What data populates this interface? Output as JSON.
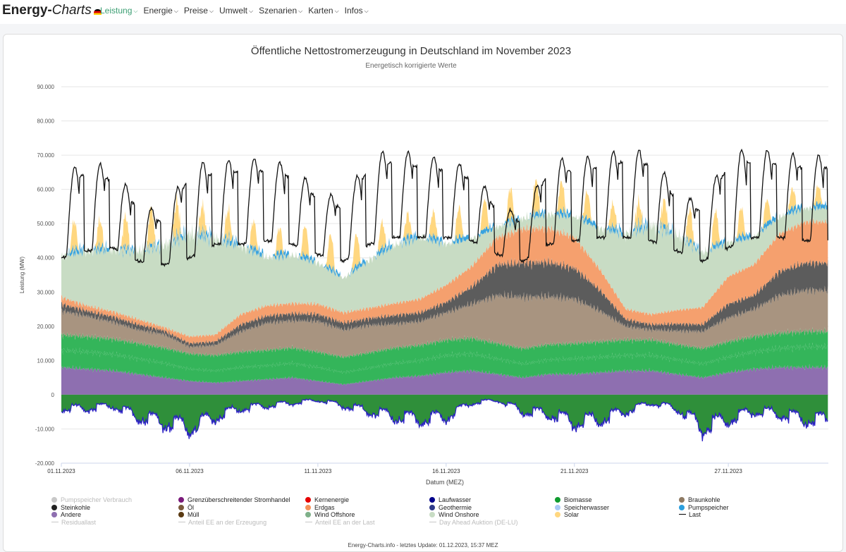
{
  "nav": {
    "brand_main": "Energy-",
    "brand_sub": "Charts",
    "items": [
      {
        "label": "Leistung",
        "active": true
      },
      {
        "label": "Energie"
      },
      {
        "label": "Preise"
      },
      {
        "label": "Umwelt"
      },
      {
        "label": "Szenarien"
      },
      {
        "label": "Karten"
      },
      {
        "label": "Infos"
      }
    ]
  },
  "footer": "Energy-Charts.info - letztes Update: 01.12.2023, 15:37 MEZ",
  "chart_data": {
    "type": "area",
    "title": "Öffentliche Nettostromerzeugung in Deutschland im November 2023",
    "subtitle": "Energetisch korrigierte Werte",
    "ylabel": "Leistung (MW)",
    "xlabel": "Datum (MEZ)",
    "ylim": [
      -20000,
      90000
    ],
    "xlim_days": [
      1,
      30.9
    ],
    "y_ticks": [
      -20000,
      -10000,
      0,
      10000,
      20000,
      30000,
      40000,
      50000,
      60000,
      70000,
      80000,
      90000
    ],
    "y_tick_labels": [
      "-20.000",
      "-10.000",
      "0",
      "10.000",
      "20.000",
      "30.000",
      "40.000",
      "50.000",
      "60.000",
      "70.000",
      "80.000",
      "90.000"
    ],
    "x_ticks": [
      1,
      6,
      11,
      16,
      21,
      27
    ],
    "x_tick_labels": [
      "01.11.2023",
      "06.11.2023",
      "11.11.2023",
      "16.11.2023",
      "21.11.2023",
      "27.11.2023"
    ],
    "daily": {
      "days": [
        "01.11.",
        "02.11.",
        "03.11.",
        "04.11.",
        "05.11.",
        "06.11.",
        "07.11.",
        "08.11.",
        "09.11.",
        "10.11.",
        "11.11.",
        "12.11.",
        "13.11.",
        "14.11.",
        "15.11.",
        "16.11.",
        "17.11.",
        "18.11.",
        "19.11.",
        "20.11.",
        "21.11.",
        "22.11.",
        "23.11.",
        "24.11.",
        "25.11.",
        "26.11.",
        "27.11.",
        "28.11.",
        "29.11.",
        "30.11."
      ],
      "load_peak": [
        64000,
        69000,
        66000,
        57000,
        52000,
        68000,
        68000,
        69000,
        69000,
        67000,
        60000,
        57000,
        70000,
        72000,
        70000,
        69000,
        66000,
        56000,
        52000,
        69000,
        69000,
        70000,
        72000,
        71000,
        59000,
        56000,
        71000,
        72000,
        71000,
        70000
      ],
      "load_min": [
        40000,
        42000,
        43000,
        39000,
        38000,
        40000,
        44000,
        44000,
        45000,
        44000,
        41000,
        39000,
        44000,
        46000,
        46000,
        46000,
        45000,
        41000,
        39000,
        44000,
        45000,
        46000,
        46000,
        45000,
        42000,
        39000,
        43000,
        46000,
        46000,
        45000
      ],
      "andere": [
        8000,
        7500,
        7000,
        6000,
        5000,
        4000,
        3500,
        4000,
        4500,
        5000,
        4000,
        3000,
        4000,
        5000,
        5500,
        6500,
        7000,
        6000,
        5000,
        6000,
        6000,
        6500,
        7000,
        7000,
        6000,
        5000,
        6500,
        7500,
        8000,
        8000
      ],
      "wind_offshore": [
        5000,
        5000,
        4800,
        4500,
        4200,
        3500,
        3500,
        4000,
        4000,
        4200,
        4000,
        3500,
        3800,
        4200,
        4500,
        5000,
        5000,
        4500,
        4000,
        4200,
        4500,
        4500,
        4500,
        4500,
        4200,
        4000,
        4500,
        5000,
        5500,
        6000
      ],
      "biomasse": [
        4500,
        4500,
        4500,
        4500,
        4500,
        4500,
        4500,
        4500,
        4500,
        4500,
        4500,
        4500,
        4500,
        4500,
        4500,
        4500,
        4500,
        4500,
        4500,
        4500,
        4500,
        4500,
        4500,
        4500,
        4500,
        4500,
        4500,
        4500,
        4500,
        4500
      ],
      "braunkohle": [
        7000,
        6000,
        5000,
        4000,
        4000,
        2000,
        3000,
        6000,
        8000,
        8000,
        9000,
        8000,
        8000,
        7000,
        7000,
        8000,
        10000,
        14000,
        15000,
        14000,
        13000,
        9000,
        4000,
        3000,
        4000,
        5000,
        7000,
        8000,
        11000,
        12000
      ],
      "steinkohle": [
        2000,
        1500,
        1500,
        1500,
        1000,
        1000,
        1000,
        2000,
        2000,
        2000,
        2000,
        2000,
        2000,
        2500,
        2500,
        3000,
        5000,
        9000,
        10000,
        10000,
        9000,
        6000,
        2000,
        1500,
        2000,
        2000,
        4000,
        4000,
        7000,
        8000
      ],
      "erdgas": [
        2000,
        1500,
        1500,
        1500,
        1000,
        2000,
        2000,
        3000,
        3000,
        3000,
        3000,
        3000,
        3000,
        3500,
        4000,
        5000,
        6000,
        8000,
        10000,
        10000,
        9000,
        6000,
        3000,
        3000,
        4000,
        5000,
        8000,
        9000,
        11000,
        12000
      ],
      "wind_onshore": [
        12000,
        16000,
        18000,
        20000,
        24000,
        30000,
        28000,
        20000,
        14000,
        14000,
        12000,
        10000,
        14000,
        17000,
        18000,
        12000,
        8000,
        3000,
        3000,
        4000,
        6000,
        12000,
        22000,
        26000,
        22000,
        16000,
        10000,
        8000,
        5000,
        4000
      ],
      "solar_peak": [
        9000,
        7000,
        8000,
        10000,
        12000,
        8000,
        7000,
        9000,
        6000,
        8000,
        9000,
        10000,
        8000,
        7000,
        6000,
        8000,
        9000,
        8000,
        10000,
        9000,
        8000,
        7000,
        6000,
        7000,
        8000,
        10000,
        9000,
        7000,
        6000,
        5000
      ],
      "pump_import": [
        1500,
        1500,
        1200,
        1000,
        1000,
        1500,
        1500,
        1500,
        1500,
        1500,
        1200,
        1000,
        1500,
        1500,
        1500,
        1500,
        1500,
        1200,
        1000,
        1500,
        1500,
        1500,
        1500,
        1500,
        1200,
        1000,
        1500,
        1500,
        1500,
        1500
      ],
      "grenz_min": [
        -5000,
        -5000,
        -4000,
        -8000,
        -10000,
        -12000,
        -8000,
        -5000,
        -4000,
        -3000,
        -2000,
        -4000,
        -6000,
        -8000,
        -9000,
        -8000,
        -3000,
        -2000,
        -6000,
        -7000,
        -10000,
        -9000,
        -6000,
        -3000,
        -5000,
        -12000,
        -9000,
        -6000,
        -7000,
        -9000
      ]
    },
    "legend": [
      {
        "label": "Pumpspeicher Verbrauch",
        "color": "#c8c8c8",
        "marker": "dot",
        "hidden": true
      },
      {
        "label": "Grenzüberschreitender Stromhandel",
        "color": "#7a1a7a",
        "marker": "dot"
      },
      {
        "label": "Kernenergie",
        "color": "#e60000",
        "marker": "dot"
      },
      {
        "label": "Laufwasser",
        "color": "#00008b",
        "marker": "dot"
      },
      {
        "label": "Biomasse",
        "color": "#0f9b2f",
        "marker": "dot"
      },
      {
        "label": "Braunkohle",
        "color": "#8e7a63",
        "marker": "dot"
      },
      {
        "label": "Steinkohle",
        "color": "#222222",
        "marker": "dot"
      },
      {
        "label": "Öl",
        "color": "#7b5a3c",
        "marker": "dot"
      },
      {
        "label": "Erdgas",
        "color": "#f5915a",
        "marker": "dot"
      },
      {
        "label": "Geothermie",
        "color": "#2e3a8a",
        "marker": "dot"
      },
      {
        "label": "Speicherwasser",
        "color": "#a9c9f5",
        "marker": "dot"
      },
      {
        "label": "Pumpspeicher",
        "color": "#2b9fde",
        "marker": "dot"
      },
      {
        "label": "Andere",
        "color": "#8e6fb0",
        "marker": "dot"
      },
      {
        "label": "Müll",
        "color": "#5a3a12",
        "marker": "dot"
      },
      {
        "label": "Wind Offshore",
        "color": "#7fb089",
        "marker": "dot"
      },
      {
        "label": "Wind Onshore",
        "color": "#c8dcc4",
        "marker": "dot"
      },
      {
        "label": "Solar",
        "color": "#ffd780",
        "marker": "dot"
      },
      {
        "label": "Last",
        "color": "#000000",
        "marker": "line"
      },
      {
        "label": "Residuallast",
        "color": "#c8c8c8",
        "marker": "line",
        "hidden": true
      },
      {
        "label": "Anteil EE an der Erzeugung",
        "color": "#c8c8c8",
        "marker": "line",
        "hidden": true
      },
      {
        "label": "Anteil EE an der Last",
        "color": "#c8c8c8",
        "marker": "line",
        "hidden": true
      },
      {
        "label": "Day Ahead Auktion (DE-LU)",
        "color": "#c8c8c8",
        "marker": "line",
        "hidden": true
      }
    ]
  }
}
